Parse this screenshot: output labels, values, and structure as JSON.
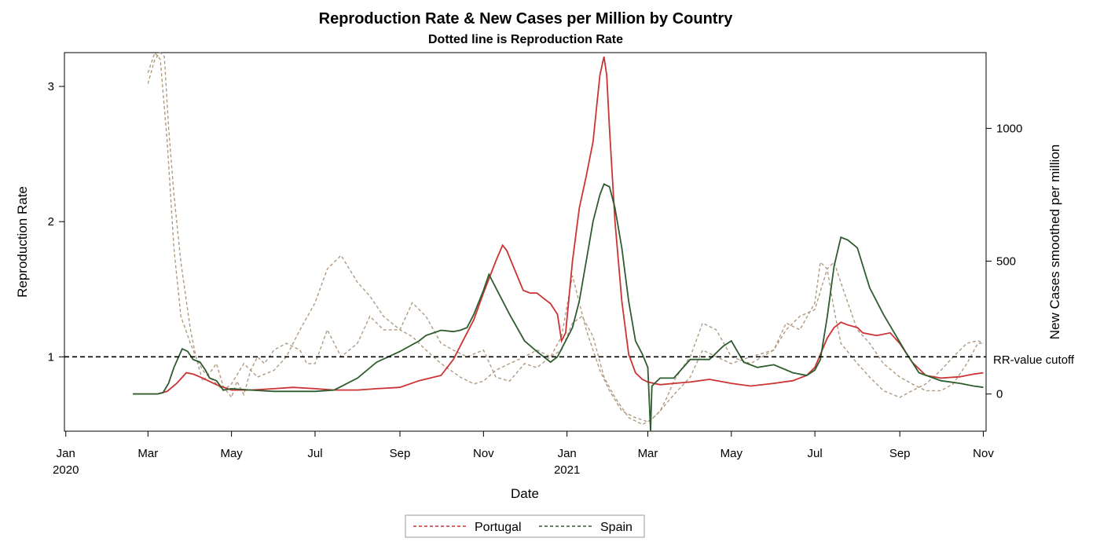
{
  "chart_data": {
    "type": "line",
    "title": "Reproduction Rate & New Cases per Million by Country",
    "subtitle": "Dotted line is Reproduction Rate",
    "xlabel": "Date",
    "ylabel_left": "Reproduction Rate",
    "ylabel_right": "New Cases smoothed per million",
    "x_ticks": [
      {
        "date": "2020-01-01",
        "label": "Jan",
        "label2": "2020"
      },
      {
        "date": "2020-03-01",
        "label": "Mar",
        "label2": ""
      },
      {
        "date": "2020-05-01",
        "label": "May",
        "label2": ""
      },
      {
        "date": "2020-07-01",
        "label": "Jul",
        "label2": ""
      },
      {
        "date": "2020-09-01",
        "label": "Sep",
        "label2": ""
      },
      {
        "date": "2020-11-01",
        "label": "Nov",
        "label2": ""
      },
      {
        "date": "2021-01-01",
        "label": "Jan",
        "label2": "2021"
      },
      {
        "date": "2021-03-01",
        "label": "Mar",
        "label2": ""
      },
      {
        "date": "2021-05-01",
        "label": "May",
        "label2": ""
      },
      {
        "date": "2021-07-01",
        "label": "Jul",
        "label2": ""
      },
      {
        "date": "2021-09-01",
        "label": "Sep",
        "label2": ""
      },
      {
        "date": "2021-11-01",
        "label": "Nov",
        "label2": ""
      }
    ],
    "x_range": [
      "2019-12-31",
      "2021-11-03"
    ],
    "y_left_ticks": [
      1,
      2,
      3
    ],
    "y_left_range": [
      0.45,
      3.25
    ],
    "y_right_ticks": [
      0,
      500,
      1000
    ],
    "y_right_range": [
      -140,
      1285
    ],
    "cutoff": {
      "value": 1,
      "label": "RR-value cutoff"
    },
    "legend": {
      "position": "bottom-center"
    },
    "series": [
      {
        "name": "Portugal",
        "color": "#cc3333",
        "new_cases": {
          "dates": [
            "2020-02-19",
            "2020-03-01",
            "2020-03-08",
            "2020-03-15",
            "2020-03-22",
            "2020-03-29",
            "2020-04-03",
            "2020-04-10",
            "2020-04-20",
            "2020-05-01",
            "2020-05-15",
            "2020-06-01",
            "2020-06-15",
            "2020-07-01",
            "2020-07-15",
            "2020-08-01",
            "2020-08-15",
            "2020-09-01",
            "2020-09-15",
            "2020-10-01",
            "2020-10-10",
            "2020-10-20",
            "2020-10-25",
            "2020-11-01",
            "2020-11-10",
            "2020-11-15",
            "2020-11-18",
            "2020-11-22",
            "2020-11-30",
            "2020-12-05",
            "2020-12-10",
            "2020-12-15",
            "2020-12-20",
            "2020-12-25",
            "2020-12-28",
            "2020-12-31",
            "2021-01-05",
            "2021-01-10",
            "2021-01-15",
            "2021-01-20",
            "2021-01-25",
            "2021-01-28",
            "2021-01-30",
            "2021-02-01",
            "2021-02-05",
            "2021-02-10",
            "2021-02-15",
            "2021-02-20",
            "2021-02-25",
            "2021-03-01",
            "2021-03-10",
            "2021-03-20",
            "2021-04-01",
            "2021-04-15",
            "2021-05-01",
            "2021-05-15",
            "2021-06-01",
            "2021-06-15",
            "2021-06-25",
            "2021-07-01",
            "2021-07-10",
            "2021-07-15",
            "2021-07-20",
            "2021-07-25",
            "2021-08-01",
            "2021-08-05",
            "2021-08-15",
            "2021-08-25",
            "2021-09-01",
            "2021-09-10",
            "2021-09-20",
            "2021-10-01",
            "2021-10-15",
            "2021-10-25",
            "2021-11-01"
          ],
          "values": [
            0,
            0,
            0,
            10,
            40,
            80,
            75,
            60,
            35,
            15,
            15,
            20,
            25,
            20,
            15,
            15,
            20,
            25,
            50,
            70,
            130,
            230,
            280,
            380,
            500,
            560,
            540,
            490,
            390,
            380,
            380,
            360,
            340,
            300,
            200,
            230,
            500,
            700,
            820,
            950,
            1200,
            1270,
            1200,
            1000,
            650,
            350,
            150,
            80,
            55,
            45,
            35,
            40,
            45,
            55,
            40,
            30,
            40,
            50,
            70,
            100,
            210,
            250,
            270,
            260,
            250,
            230,
            220,
            230,
            190,
            120,
            70,
            60,
            65,
            75,
            80
          ]
        },
        "rr": {
          "dates": [
            "2020-03-01",
            "2020-03-06",
            "2020-03-10",
            "2020-03-13",
            "2020-03-16",
            "2020-03-20",
            "2020-03-25",
            "2020-04-01",
            "2020-04-05",
            "2020-04-10",
            "2020-04-15",
            "2020-04-20",
            "2020-04-25",
            "2020-05-01",
            "2020-05-05",
            "2020-05-10",
            "2020-05-15",
            "2020-05-20",
            "2020-05-25",
            "2020-06-01",
            "2020-06-10",
            "2020-06-20",
            "2020-06-25",
            "2020-07-01",
            "2020-07-10",
            "2020-07-20",
            "2020-08-01",
            "2020-08-10",
            "2020-08-20",
            "2020-09-01",
            "2020-09-10",
            "2020-09-20",
            "2020-10-01",
            "2020-10-10",
            "2020-10-20",
            "2020-11-01",
            "2020-11-10",
            "2020-11-20",
            "2020-12-01",
            "2020-12-10",
            "2020-12-20",
            "2020-12-28",
            "2021-01-05",
            "2021-01-10",
            "2021-01-15",
            "2021-01-20",
            "2021-01-25",
            "2021-02-01",
            "2021-02-10",
            "2021-02-20",
            "2021-03-01",
            "2021-03-05",
            "2021-03-10",
            "2021-03-15",
            "2021-03-20",
            "2021-03-25",
            "2021-04-01",
            "2021-04-10",
            "2021-04-20",
            "2021-05-01",
            "2021-05-15",
            "2021-06-01",
            "2021-06-10",
            "2021-06-20",
            "2021-07-01",
            "2021-07-10",
            "2021-07-15",
            "2021-07-20",
            "2021-07-25",
            "2021-08-01",
            "2021-08-10",
            "2021-08-20",
            "2021-09-01",
            "2021-09-10",
            "2021-09-20",
            "2021-10-01",
            "2021-10-10",
            "2021-10-20",
            "2021-10-28",
            "2021-11-01"
          ],
          "values": [
            3.02,
            3.2,
            3.25,
            3.22,
            2.7,
            2.2,
            1.7,
            1.2,
            1.0,
            0.82,
            0.88,
            0.95,
            0.78,
            0.7,
            0.82,
            0.72,
            0.9,
            1.0,
            0.95,
            1.05,
            1.1,
            1.05,
            0.95,
            0.95,
            1.2,
            1.0,
            1.1,
            1.3,
            1.2,
            1.2,
            1.4,
            1.3,
            1.1,
            1.05,
            1.0,
            1.05,
            0.85,
            0.82,
            0.95,
            0.92,
            1.0,
            1.15,
            1.6,
            1.4,
            1.2,
            1.05,
            0.9,
            0.75,
            0.6,
            0.55,
            0.52,
            0.55,
            0.6,
            0.7,
            0.82,
            0.9,
            1.0,
            1.25,
            1.2,
            1.0,
            0.95,
            1.05,
            1.2,
            1.3,
            1.35,
            1.65,
            1.7,
            1.55,
            1.4,
            1.2,
            1.1,
            0.95,
            0.85,
            0.8,
            0.75,
            0.75,
            0.8,
            0.95,
            1.1,
            1.1
          ]
        }
      },
      {
        "name": "Spain",
        "color": "#2e5c2e",
        "new_cases": {
          "dates": [
            "2020-02-19",
            "2020-03-01",
            "2020-03-08",
            "2020-03-12",
            "2020-03-16",
            "2020-03-20",
            "2020-03-26",
            "2020-03-30",
            "2020-04-03",
            "2020-04-08",
            "2020-04-12",
            "2020-04-15",
            "2020-04-20",
            "2020-04-25",
            "2020-05-01",
            "2020-05-15",
            "2020-06-01",
            "2020-06-15",
            "2020-07-01",
            "2020-07-15",
            "2020-08-01",
            "2020-08-15",
            "2020-09-01",
            "2020-09-15",
            "2020-09-20",
            "2020-10-01",
            "2020-10-10",
            "2020-10-15",
            "2020-10-20",
            "2020-10-25",
            "2020-11-01",
            "2020-11-05",
            "2020-11-10",
            "2020-11-20",
            "2020-12-01",
            "2020-12-10",
            "2020-12-15",
            "2020-12-20",
            "2020-12-25",
            "2021-01-01",
            "2021-01-05",
            "2021-01-10",
            "2021-01-15",
            "2021-01-20",
            "2021-01-25",
            "2021-01-28",
            "2021-02-01",
            "2021-02-05",
            "2021-02-10",
            "2021-02-15",
            "2021-02-20",
            "2021-02-25",
            "2021-03-01",
            "2021-03-03",
            "2021-03-04",
            "2021-03-10",
            "2021-03-20",
            "2021-04-01",
            "2021-04-15",
            "2021-04-25",
            "2021-05-01",
            "2021-05-10",
            "2021-05-20",
            "2021-06-01",
            "2021-06-15",
            "2021-06-25",
            "2021-07-01",
            "2021-07-05",
            "2021-07-10",
            "2021-07-15",
            "2021-07-20",
            "2021-07-25",
            "2021-08-01",
            "2021-08-10",
            "2021-08-20",
            "2021-08-28",
            "2021-09-05",
            "2021-09-15",
            "2021-10-01",
            "2021-10-15",
            "2021-10-25",
            "2021-11-01"
          ],
          "values": [
            0,
            0,
            0,
            5,
            40,
            100,
            170,
            160,
            130,
            120,
            90,
            60,
            50,
            15,
            20,
            15,
            10,
            10,
            10,
            15,
            60,
            120,
            160,
            200,
            220,
            240,
            235,
            240,
            250,
            300,
            390,
            450,
            400,
            300,
            200,
            160,
            140,
            120,
            140,
            210,
            250,
            350,
            500,
            650,
            750,
            790,
            780,
            700,
            550,
            350,
            200,
            150,
            100,
            -140,
            30,
            60,
            60,
            130,
            130,
            180,
            200,
            120,
            100,
            110,
            80,
            70,
            90,
            130,
            290,
            480,
            590,
            580,
            550,
            400,
            300,
            230,
            160,
            80,
            50,
            40,
            30,
            25
          ]
        },
        "rr": {
          "dates": [
            "2020-03-01",
            "2020-03-06",
            "2020-03-10",
            "2020-03-15",
            "2020-03-20",
            "2020-03-25",
            "2020-04-01",
            "2020-04-05",
            "2020-04-10",
            "2020-04-15",
            "2020-04-20",
            "2020-04-25",
            "2020-05-01",
            "2020-05-10",
            "2020-05-20",
            "2020-06-01",
            "2020-06-10",
            "2020-06-20",
            "2020-07-01",
            "2020-07-10",
            "2020-07-20",
            "2020-08-01",
            "2020-08-10",
            "2020-08-20",
            "2020-09-01",
            "2020-09-10",
            "2020-09-20",
            "2020-10-01",
            "2020-10-15",
            "2020-10-25",
            "2020-11-01",
            "2020-11-10",
            "2020-11-20",
            "2020-12-01",
            "2020-12-10",
            "2020-12-20",
            "2020-12-28",
            "2021-01-05",
            "2021-01-12",
            "2021-01-20",
            "2021-01-28",
            "2021-02-05",
            "2021-02-15",
            "2021-02-25",
            "2021-03-01",
            "2021-03-05",
            "2021-03-10",
            "2021-03-20",
            "2021-04-01",
            "2021-04-10",
            "2021-04-20",
            "2021-05-01",
            "2021-05-15",
            "2021-06-01",
            "2021-06-10",
            "2021-06-20",
            "2021-07-01",
            "2021-07-05",
            "2021-07-10",
            "2021-07-15",
            "2021-07-20",
            "2021-08-01",
            "2021-08-10",
            "2021-08-20",
            "2021-09-01",
            "2021-09-10",
            "2021-09-20",
            "2021-10-01",
            "2021-10-10",
            "2021-10-20",
            "2021-10-28",
            "2021-11-01"
          ],
          "values": [
            3.1,
            3.25,
            3.2,
            2.6,
            1.8,
            1.3,
            1.1,
            1.0,
            0.9,
            0.85,
            0.8,
            0.75,
            0.8,
            0.95,
            0.85,
            0.9,
            1.0,
            1.2,
            1.4,
            1.65,
            1.75,
            1.55,
            1.45,
            1.3,
            1.2,
            1.15,
            1.05,
            0.95,
            0.85,
            0.8,
            0.82,
            0.9,
            0.95,
            1.0,
            1.05,
            1.0,
            1.05,
            1.25,
            1.3,
            1.15,
            0.85,
            0.7,
            0.55,
            0.5,
            0.52,
            0.55,
            0.6,
            0.72,
            0.85,
            1.05,
            1.0,
            0.95,
            1.0,
            1.05,
            1.25,
            1.2,
            1.4,
            1.7,
            1.65,
            1.35,
            1.1,
            0.95,
            0.85,
            0.75,
            0.7,
            0.75,
            0.8,
            0.9,
            1.0,
            1.1,
            1.12,
            1.1
          ]
        }
      }
    ]
  }
}
